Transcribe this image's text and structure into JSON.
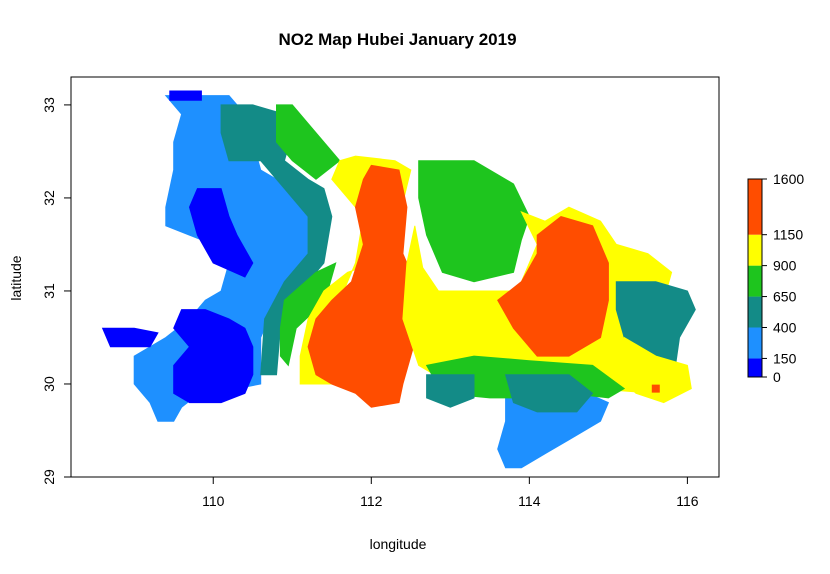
{
  "chart_data": {
    "type": "heatmap",
    "title": "NO2 Map Hubei January 2019",
    "xlabel": "longitude",
    "ylabel": "latitude",
    "xlim": [
      108.2,
      116.4
    ],
    "ylim": [
      29.0,
      33.3
    ],
    "x_ticks": [
      110,
      112,
      114,
      116
    ],
    "y_ticks": [
      29,
      30,
      31,
      32,
      33
    ],
    "legend": {
      "placement": "right",
      "breaks": [
        0,
        150,
        400,
        650,
        900,
        1150,
        1600
      ],
      "tick_labels": [
        "0",
        "150",
        "400",
        "650",
        "900",
        "1150",
        "1600"
      ],
      "colors": [
        "#0000ff",
        "#1e90ff",
        "#138b87",
        "#1ec51e",
        "#ffff00",
        "#ff4d00"
      ]
    },
    "zones": [
      {
        "class": 1,
        "color": "#1e90ff",
        "polygon": [
          [
            109.4,
            33.1
          ],
          [
            110.2,
            33.1
          ],
          [
            110.3,
            33.0
          ],
          [
            110.5,
            32.6
          ],
          [
            110.6,
            32.3
          ],
          [
            110.8,
            32.2
          ],
          [
            111.1,
            32.0
          ],
          [
            111.3,
            31.9
          ],
          [
            111.3,
            31.6
          ],
          [
            111.3,
            31.2
          ],
          [
            111.0,
            31.1
          ],
          [
            110.8,
            30.9
          ],
          [
            110.6,
            30.5
          ],
          [
            110.6,
            30.0
          ],
          [
            110.3,
            29.95
          ],
          [
            109.9,
            29.95
          ],
          [
            109.6,
            29.75
          ],
          [
            109.5,
            29.6
          ],
          [
            109.3,
            29.6
          ],
          [
            109.2,
            29.8
          ],
          [
            109.0,
            30.0
          ],
          [
            109.0,
            30.3
          ],
          [
            109.4,
            30.5
          ],
          [
            109.7,
            30.7
          ],
          [
            109.9,
            30.9
          ],
          [
            110.1,
            31.0
          ],
          [
            110.2,
            31.3
          ],
          [
            110.0,
            31.5
          ],
          [
            109.7,
            31.6
          ],
          [
            109.4,
            31.7
          ],
          [
            109.4,
            31.9
          ],
          [
            109.5,
            32.3
          ],
          [
            109.5,
            32.6
          ],
          [
            109.6,
            32.9
          ]
        ]
      },
      {
        "class": 1,
        "color": "#1e90ff",
        "polygon": [
          [
            113.7,
            29.95
          ],
          [
            114.6,
            29.95
          ],
          [
            115.0,
            29.8
          ],
          [
            114.9,
            29.6
          ],
          [
            114.5,
            29.4
          ],
          [
            114.2,
            29.25
          ],
          [
            113.9,
            29.1
          ],
          [
            113.7,
            29.1
          ],
          [
            113.6,
            29.3
          ],
          [
            113.7,
            29.6
          ]
        ]
      },
      {
        "class": 0,
        "color": "#0000ff",
        "polygon": [
          [
            109.6,
            30.8
          ],
          [
            109.9,
            30.8
          ],
          [
            110.2,
            30.7
          ],
          [
            110.4,
            30.6
          ],
          [
            110.5,
            30.4
          ],
          [
            110.5,
            30.1
          ],
          [
            110.4,
            29.9
          ],
          [
            110.1,
            29.8
          ],
          [
            109.7,
            29.8
          ],
          [
            109.5,
            29.9
          ],
          [
            109.5,
            30.2
          ],
          [
            109.7,
            30.4
          ],
          [
            109.5,
            30.6
          ]
        ]
      },
      {
        "class": 0,
        "color": "#0000ff",
        "polygon": [
          [
            109.8,
            32.1
          ],
          [
            110.1,
            32.1
          ],
          [
            110.2,
            31.8
          ],
          [
            110.3,
            31.6
          ],
          [
            110.5,
            31.3
          ],
          [
            110.4,
            31.15
          ],
          [
            110.0,
            31.3
          ],
          [
            109.8,
            31.6
          ],
          [
            109.7,
            31.9
          ]
        ]
      },
      {
        "class": 0,
        "color": "#0000ff",
        "polygon": [
          [
            108.6,
            30.6
          ],
          [
            109.0,
            30.6
          ],
          [
            109.3,
            30.55
          ],
          [
            109.2,
            30.4
          ],
          [
            108.7,
            30.4
          ]
        ]
      },
      {
        "class": 0,
        "color": "#0000ff",
        "polygon": [
          [
            109.45,
            33.15
          ],
          [
            109.85,
            33.15
          ],
          [
            109.85,
            33.05
          ],
          [
            109.45,
            33.05
          ]
        ]
      },
      {
        "class": 2,
        "color": "#138b87",
        "polygon": [
          [
            110.1,
            33.0
          ],
          [
            110.5,
            33.0
          ],
          [
            110.9,
            32.9
          ],
          [
            111.0,
            32.7
          ],
          [
            110.9,
            32.4
          ],
          [
            111.2,
            32.2
          ],
          [
            111.4,
            32.1
          ],
          [
            111.5,
            31.8
          ],
          [
            111.4,
            31.3
          ],
          [
            111.1,
            31.0
          ],
          [
            110.85,
            30.6
          ],
          [
            110.8,
            30.1
          ],
          [
            110.6,
            30.1
          ],
          [
            110.65,
            30.7
          ],
          [
            110.9,
            31.1
          ],
          [
            111.2,
            31.4
          ],
          [
            111.2,
            31.8
          ],
          [
            110.9,
            32.1
          ],
          [
            110.6,
            32.4
          ],
          [
            110.2,
            32.4
          ],
          [
            110.1,
            32.7
          ]
        ]
      },
      {
        "class": 3,
        "color": "#1ec51e",
        "polygon": [
          [
            110.8,
            33.0
          ],
          [
            111.0,
            33.0
          ],
          [
            111.4,
            32.6
          ],
          [
            111.6,
            32.4
          ],
          [
            111.3,
            32.2
          ],
          [
            111.0,
            32.4
          ],
          [
            110.8,
            32.6
          ]
        ]
      },
      {
        "class": 3,
        "color": "#1ec51e",
        "polygon": [
          [
            110.9,
            30.9
          ],
          [
            111.3,
            31.2
          ],
          [
            111.55,
            31.3
          ],
          [
            111.45,
            31.0
          ],
          [
            111.3,
            30.8
          ],
          [
            111.05,
            30.6
          ],
          [
            110.95,
            30.2
          ],
          [
            110.85,
            30.3
          ],
          [
            110.85,
            30.6
          ]
        ]
      },
      {
        "class": 4,
        "color": "#ffff00",
        "polygon": [
          [
            111.6,
            32.4
          ],
          [
            111.8,
            32.45
          ],
          [
            112.3,
            32.4
          ],
          [
            112.5,
            32.3
          ],
          [
            112.3,
            31.6
          ],
          [
            112.05,
            31.3
          ],
          [
            111.7,
            31.2
          ],
          [
            111.4,
            31.0
          ],
          [
            111.2,
            30.7
          ],
          [
            111.1,
            30.3
          ],
          [
            111.1,
            30.0
          ],
          [
            111.5,
            30.0
          ],
          [
            111.9,
            30.2
          ],
          [
            111.8,
            30.7
          ],
          [
            111.6,
            30.9
          ],
          [
            111.8,
            31.3
          ],
          [
            111.9,
            31.8
          ],
          [
            111.7,
            32.0
          ],
          [
            111.5,
            32.2
          ]
        ]
      },
      {
        "class": 5,
        "color": "#ff4d00",
        "polygon": [
          [
            112.0,
            32.35
          ],
          [
            112.35,
            32.3
          ],
          [
            112.45,
            31.9
          ],
          [
            112.4,
            31.4
          ],
          [
            112.5,
            31.2
          ],
          [
            112.8,
            31.0
          ],
          [
            112.9,
            30.8
          ],
          [
            112.6,
            30.6
          ],
          [
            112.5,
            30.3
          ],
          [
            112.4,
            30.0
          ],
          [
            112.35,
            29.8
          ],
          [
            112.0,
            29.75
          ],
          [
            111.8,
            29.9
          ],
          [
            111.5,
            30.0
          ],
          [
            111.3,
            30.1
          ],
          [
            111.2,
            30.4
          ],
          [
            111.3,
            30.7
          ],
          [
            111.5,
            30.9
          ],
          [
            111.75,
            31.1
          ],
          [
            111.9,
            31.5
          ],
          [
            111.8,
            31.9
          ],
          [
            111.9,
            32.2
          ]
        ]
      },
      {
        "class": 3,
        "color": "#1ec51e",
        "polygon": [
          [
            112.6,
            32.4
          ],
          [
            113.3,
            32.4
          ],
          [
            113.8,
            32.15
          ],
          [
            114.0,
            31.8
          ],
          [
            113.9,
            31.55
          ],
          [
            113.8,
            31.2
          ],
          [
            113.3,
            31.1
          ],
          [
            112.9,
            31.2
          ],
          [
            112.7,
            31.6
          ],
          [
            112.6,
            32.0
          ]
        ]
      },
      {
        "class": 4,
        "color": "#ffff00",
        "polygon": [
          [
            112.55,
            31.7
          ],
          [
            112.65,
            31.25
          ],
          [
            112.85,
            31.0
          ],
          [
            113.3,
            31.0
          ],
          [
            113.85,
            31.0
          ],
          [
            114.1,
            31.5
          ],
          [
            113.9,
            31.85
          ],
          [
            114.2,
            31.75
          ],
          [
            114.5,
            31.9
          ],
          [
            114.9,
            31.75
          ],
          [
            115.1,
            31.5
          ],
          [
            115.5,
            31.4
          ],
          [
            115.8,
            31.2
          ],
          [
            115.7,
            30.9
          ],
          [
            115.5,
            30.5
          ],
          [
            115.55,
            30.15
          ],
          [
            115.9,
            30.0
          ],
          [
            115.6,
            29.9
          ],
          [
            114.8,
            29.95
          ],
          [
            114.4,
            30.15
          ],
          [
            113.6,
            30.1
          ],
          [
            113.0,
            30.0
          ],
          [
            112.6,
            30.2
          ],
          [
            112.4,
            30.7
          ],
          [
            112.45,
            31.3
          ]
        ]
      },
      {
        "class": 5,
        "color": "#ff4d00",
        "polygon": [
          [
            114.1,
            31.6
          ],
          [
            114.4,
            31.8
          ],
          [
            114.8,
            31.7
          ],
          [
            115.0,
            31.3
          ],
          [
            115.0,
            30.9
          ],
          [
            114.9,
            30.5
          ],
          [
            114.5,
            30.3
          ],
          [
            114.1,
            30.3
          ],
          [
            113.8,
            30.6
          ],
          [
            113.6,
            30.9
          ],
          [
            113.9,
            31.1
          ],
          [
            114.1,
            31.4
          ]
        ]
      },
      {
        "class": 2,
        "color": "#138b87",
        "polygon": [
          [
            115.1,
            31.1
          ],
          [
            115.6,
            31.1
          ],
          [
            116.0,
            31.0
          ],
          [
            116.1,
            30.8
          ],
          [
            115.9,
            30.5
          ],
          [
            115.85,
            30.2
          ],
          [
            115.5,
            30.2
          ],
          [
            115.2,
            30.5
          ],
          [
            115.1,
            30.8
          ]
        ]
      },
      {
        "class": 4,
        "color": "#ffff00",
        "polygon": [
          [
            115.2,
            30.5
          ],
          [
            115.6,
            30.3
          ],
          [
            116.0,
            30.2
          ],
          [
            116.05,
            29.95
          ],
          [
            115.7,
            29.8
          ],
          [
            115.35,
            29.9
          ],
          [
            115.1,
            30.1
          ]
        ]
      },
      {
        "class": 3,
        "color": "#1ec51e",
        "polygon": [
          [
            112.7,
            30.2
          ],
          [
            113.3,
            30.3
          ],
          [
            114.0,
            30.25
          ],
          [
            114.8,
            30.2
          ],
          [
            115.2,
            29.95
          ],
          [
            115.0,
            29.85
          ],
          [
            114.5,
            29.9
          ],
          [
            114.0,
            29.85
          ],
          [
            113.5,
            29.85
          ],
          [
            112.9,
            29.9
          ]
        ]
      },
      {
        "class": 2,
        "color": "#138b87",
        "polygon": [
          [
            112.7,
            30.1
          ],
          [
            113.3,
            30.1
          ],
          [
            113.3,
            29.85
          ],
          [
            113.0,
            29.75
          ],
          [
            112.7,
            29.85
          ]
        ]
      },
      {
        "class": 2,
        "color": "#138b87",
        "polygon": [
          [
            113.7,
            30.1
          ],
          [
            114.5,
            30.1
          ],
          [
            114.8,
            29.9
          ],
          [
            114.6,
            29.7
          ],
          [
            114.1,
            29.7
          ],
          [
            113.8,
            29.8
          ]
        ]
      }
    ],
    "hotspot": {
      "lon": 115.6,
      "lat": 29.95,
      "color": "#ff4d00",
      "class": 5
    }
  }
}
